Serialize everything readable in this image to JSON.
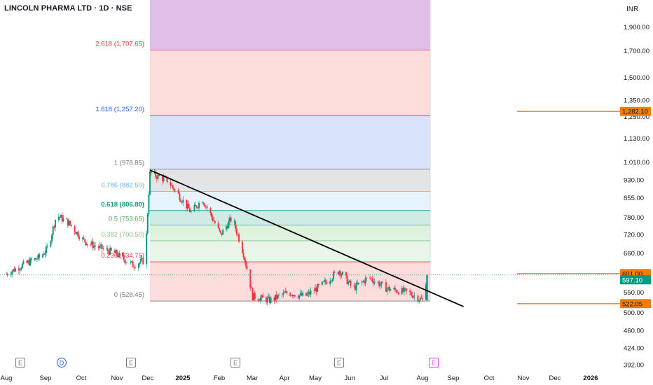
{
  "header": {
    "title": "LINCOLN PHARMA LTD · 1D · NSE",
    "currency": "INR"
  },
  "chart_data": {
    "type": "candlestick",
    "title": "LINCOLN PHARMA LTD · 1D · NSE",
    "y_axis": {
      "scale": "log",
      "ticks": [
        "1,900.00",
        "1,700.00",
        "1,500.00",
        "1,350.00",
        "1,250.00",
        "1,130.00",
        "1,010.00",
        "930.00",
        "855.00",
        "780.00",
        "720.00",
        "660.00",
        "550.00",
        "500.00",
        "460.00",
        "424.00",
        "392.00"
      ],
      "tick_values": [
        1900,
        1700,
        1500,
        1350,
        1250,
        1130,
        1010,
        930,
        855,
        780,
        720,
        660,
        550,
        500,
        460,
        424,
        392
      ]
    },
    "x_axis": {
      "labels": [
        "Aug",
        "Sep",
        "Oct",
        "Nov",
        "Dec",
        "2025",
        "Feb",
        "Mar",
        "Apr",
        "May",
        "Jun",
        "Jul",
        "Aug",
        "Sep",
        "Oct",
        "Nov",
        "Dec",
        "2026"
      ],
      "bold": [
        "2025",
        "2026"
      ]
    },
    "fibonacci": [
      {
        "label": "2.618 (1,707.65)",
        "ratio": 2.618,
        "value": 1707.65,
        "color": "#f23645",
        "fill": "#e1bee7"
      },
      {
        "label": "1.618 (1,257.20)",
        "ratio": 1.618,
        "value": 1257.2,
        "color": "#2962ff",
        "fill": "#fdd8d8"
      },
      {
        "label": "1 (978.85)",
        "ratio": 1,
        "value": 978.85,
        "color": "#787b86",
        "fill": "#d6e0fc"
      },
      {
        "label": "0.786 (882.50)",
        "ratio": 0.786,
        "value": 882.5,
        "color": "#64b5f6",
        "fill": "#e1e1e1"
      },
      {
        "label": "0.618 (806.80)",
        "ratio": 0.618,
        "value": 806.8,
        "color": "#089981",
        "fill": "#e3f2fd"
      },
      {
        "label": "0.5 (753.65)",
        "ratio": 0.5,
        "value": 753.65,
        "color": "#4caf50",
        "fill": "#cbe9e2"
      },
      {
        "label": "0.382 (700.50)",
        "ratio": 0.382,
        "value": 700.5,
        "color": "#81c784",
        "fill": "#dcf0dc"
      },
      {
        "label": "0.236 (634.75)",
        "ratio": 0.236,
        "value": 634.75,
        "color": "#f23645",
        "fill": "#e6f4e6"
      },
      {
        "label": "0 (528.45)",
        "ratio": 0,
        "value": 528.45,
        "color": "#787b86",
        "fill": "#fdd8d8"
      }
    ],
    "horizontal_lines": [
      {
        "value": 1282.1,
        "label": "1,282.10",
        "color": "#f57c00"
      },
      {
        "value": 601.0,
        "label": "601.00",
        "color": "#f57c00"
      },
      {
        "value": 522.05,
        "label": "522.05",
        "color": "#f57c00"
      }
    ],
    "last_price": {
      "value": 597.1,
      "label": "597.10",
      "color": "#089981"
    },
    "trendline": {
      "from": {
        "date": "2024-12-05",
        "value": 975
      },
      "to": {
        "date": "2025-09-06",
        "value": 515
      }
    },
    "events": [
      {
        "label": "E",
        "x_month": "Aug"
      },
      {
        "label": "D",
        "x_month": "Sep"
      },
      {
        "label": "E",
        "x_month": "Nov"
      },
      {
        "label": "E",
        "x_month": "Feb"
      },
      {
        "label": "E",
        "x_month": "May"
      },
      {
        "label": "E",
        "x_month": "Aug"
      }
    ],
    "monthly_path": [
      {
        "date": "2024-08-01",
        "value": 600
      },
      {
        "date": "2024-08-15",
        "value": 625
      },
      {
        "date": "2024-08-31",
        "value": 650
      },
      {
        "date": "2024-09-07",
        "value": 680
      },
      {
        "date": "2024-09-14",
        "value": 790
      },
      {
        "date": "2024-09-25",
        "value": 760
      },
      {
        "date": "2024-10-08",
        "value": 700
      },
      {
        "date": "2024-10-20",
        "value": 680
      },
      {
        "date": "2024-11-05",
        "value": 660
      },
      {
        "date": "2024-11-20",
        "value": 625
      },
      {
        "date": "2024-12-01",
        "value": 640
      },
      {
        "date": "2024-12-05",
        "value": 960
      },
      {
        "date": "2024-12-20",
        "value": 930
      },
      {
        "date": "2025-01-10",
        "value": 800
      },
      {
        "date": "2025-01-20",
        "value": 850
      },
      {
        "date": "2025-02-05",
        "value": 720
      },
      {
        "date": "2025-02-15",
        "value": 780
      },
      {
        "date": "2025-02-25",
        "value": 660
      },
      {
        "date": "2025-03-05",
        "value": 540
      },
      {
        "date": "2025-03-20",
        "value": 530
      },
      {
        "date": "2025-04-05",
        "value": 550
      },
      {
        "date": "2025-04-20",
        "value": 540
      },
      {
        "date": "2025-05-05",
        "value": 570
      },
      {
        "date": "2025-05-20",
        "value": 610
      },
      {
        "date": "2025-06-01",
        "value": 560
      },
      {
        "date": "2025-06-15",
        "value": 590
      },
      {
        "date": "2025-07-01",
        "value": 560
      },
      {
        "date": "2025-07-20",
        "value": 550
      },
      {
        "date": "2025-08-01",
        "value": 530
      },
      {
        "date": "2025-08-05",
        "value": 597
      }
    ]
  }
}
